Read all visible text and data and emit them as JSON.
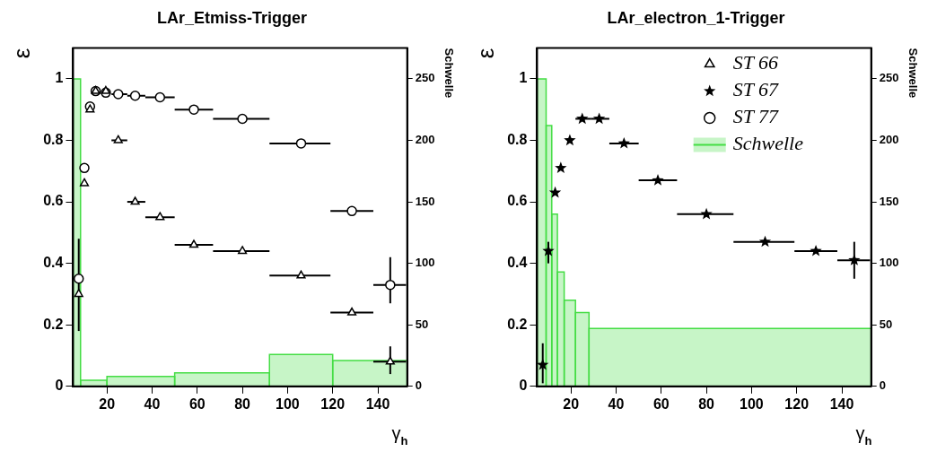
{
  "chart_data": [
    {
      "type": "scatter",
      "title": "LAr_Etmiss-Trigger",
      "xlabel": "γ$_{h}$",
      "ylabel": "ε",
      "y2label": "Schwelle",
      "xlim": [
        5,
        153
      ],
      "xticks": [
        20,
        40,
        60,
        80,
        100,
        120,
        140
      ],
      "ylim": [
        0,
        1.1
      ],
      "yticks": [
        0,
        0.2,
        0.4,
        0.6,
        0.8,
        1
      ],
      "y2lim": [
        0,
        275
      ],
      "y2ticks": [
        0,
        50,
        100,
        150,
        200,
        250
      ],
      "series": [
        {
          "type": "scatter",
          "marker": "triangle",
          "color": "#000000",
          "x": [
            7.5,
            10,
            12.5,
            15,
            19.5,
            25,
            32.5,
            43.5,
            58.5,
            80,
            106,
            128.5,
            145.5
          ],
          "values": [
            0.3,
            0.66,
            0.9,
            0.96,
            0.96,
            0.8,
            0.6,
            0.55,
            0.46,
            0.44,
            0.36,
            0.24,
            0.08
          ],
          "errors": [
            null,
            null,
            null,
            null,
            null,
            null,
            null,
            null,
            null,
            null,
            null,
            null,
            [
              0.04,
              0.13
            ]
          ],
          "xerrors": [
            null,
            null,
            null,
            null,
            null,
            [
              22,
              29
            ],
            [
              29,
              37
            ],
            [
              37,
              50
            ],
            [
              50,
              67
            ],
            [
              67,
              92
            ],
            [
              92,
              119
            ],
            [
              119,
              138
            ],
            [
              138,
              152.5
            ]
          ]
        },
        {
          "type": "scatter",
          "marker": "circle",
          "color": "#000000",
          "x": [
            7.5,
            10,
            12.5,
            15,
            19.5,
            25,
            32.5,
            43.5,
            58.5,
            80,
            106,
            128.5,
            145.5
          ],
          "values": [
            0.35,
            0.71,
            0.91,
            0.96,
            0.955,
            0.95,
            0.945,
            0.94,
            0.9,
            0.87,
            0.79,
            0.57,
            0.33
          ],
          "errors": [
            [
              0.18,
              0.48
            ],
            null,
            null,
            null,
            null,
            null,
            null,
            null,
            null,
            null,
            null,
            null,
            [
              0.27,
              0.42
            ]
          ],
          "xerrors": [
            null,
            null,
            null,
            null,
            null,
            [
              22,
              29
            ],
            [
              29,
              37
            ],
            [
              37,
              50
            ],
            [
              50,
              67
            ],
            [
              67,
              92
            ],
            [
              92,
              119
            ],
            [
              119,
              138
            ],
            [
              138,
              152.5
            ]
          ]
        },
        {
          "type": "histogram",
          "axis": "y2",
          "color": "#44dd44",
          "bins": [
            5,
            8.3,
            20,
            50,
            92,
            120,
            153
          ],
          "values": [
            250,
            5,
            8,
            11,
            26,
            21
          ]
        }
      ]
    },
    {
      "type": "scatter",
      "title": "LAr_electron_1-Trigger",
      "xlabel": "γ$_{h}$",
      "ylabel": "ε",
      "y2label": "Schwelle",
      "legend": "top right",
      "xlim": [
        5,
        153
      ],
      "xticks": [
        20,
        40,
        60,
        80,
        100,
        120,
        140
      ],
      "ylim": [
        0,
        1.1
      ],
      "yticks": [
        0,
        0.2,
        0.4,
        0.6,
        0.8,
        1
      ],
      "y2lim": [
        0,
        275
      ],
      "y2ticks": [
        0,
        50,
        100,
        150,
        200,
        250
      ],
      "series": [
        {
          "type": "scatter",
          "name": "ST 66",
          "marker": "triangle",
          "color": "#000000"
        },
        {
          "type": "scatter",
          "name": "ST 67",
          "marker": "star",
          "color": "#000000",
          "x": [
            7.5,
            10,
            13,
            15.5,
            19.5,
            25,
            32.5,
            43.5,
            58.5,
            80,
            106,
            128.5,
            145.5
          ],
          "values": [
            0.07,
            0.44,
            0.63,
            0.71,
            0.8,
            0.87,
            0.87,
            0.79,
            0.67,
            0.56,
            0.47,
            0.44,
            0.41
          ],
          "errors": [
            [
              0.01,
              0.14
            ],
            [
              0.4,
              0.47
            ],
            null,
            null,
            null,
            null,
            null,
            null,
            null,
            null,
            null,
            null,
            [
              0.35,
              0.47
            ]
          ],
          "xerrors": [
            null,
            null,
            null,
            null,
            null,
            [
              22,
              29
            ],
            [
              29,
              37
            ],
            [
              37,
              50
            ],
            [
              50,
              67
            ],
            [
              67,
              92
            ],
            [
              92,
              119
            ],
            [
              119,
              138
            ],
            [
              138,
              152.5
            ]
          ]
        },
        {
          "type": "scatter",
          "name": "ST 77",
          "marker": "circle",
          "color": "#000000"
        },
        {
          "type": "histogram",
          "name": "Schwelle",
          "axis": "y2",
          "color": "#44dd44",
          "bins": [
            5,
            9,
            11.5,
            14,
            17,
            22,
            28,
            153
          ],
          "values": [
            250,
            212,
            140,
            93,
            70,
            60,
            47
          ]
        }
      ]
    }
  ]
}
